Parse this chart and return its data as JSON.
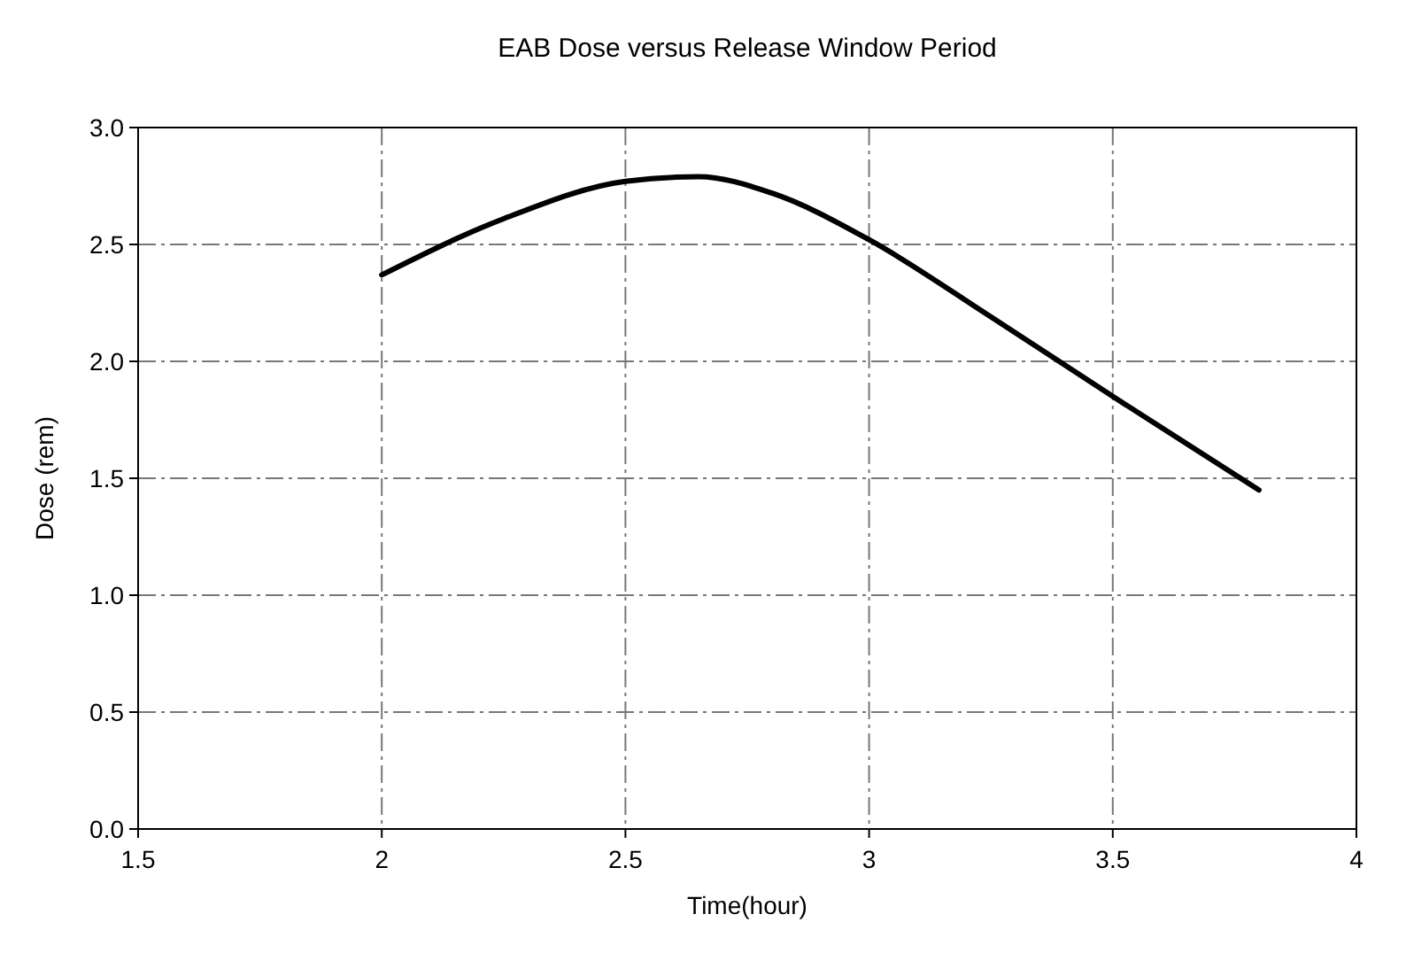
{
  "chart_data": {
    "type": "line",
    "title": "EAB Dose versus Release Window Period",
    "xlabel": "Time(hour)",
    "ylabel": "Dose (rem)",
    "x": [
      2,
      2.25,
      2.5,
      2.65,
      2.8,
      3,
      3.25,
      3.5,
      3.8
    ],
    "series": [
      {
        "color": "#000000",
        "values": [
          2.37,
          2.61,
          2.77,
          2.79,
          2.72,
          2.52,
          2.19,
          1.85,
          1.45
        ]
      }
    ],
    "xlim": [
      1.5,
      4
    ],
    "xticks": [
      1.5,
      2,
      2.5,
      3,
      3.5,
      4
    ],
    "ylim": [
      0,
      3
    ],
    "yticks": [
      {
        "value": 0,
        "label": "0.0"
      },
      {
        "value": 0.5,
        "label": "0.5"
      },
      {
        "value": 1,
        "label": "1.0"
      },
      {
        "value": 1.5,
        "label": "1.5"
      },
      {
        "value": 2,
        "label": "2.0"
      },
      {
        "value": 2.5,
        "label": "2.5"
      },
      {
        "value": 3,
        "label": "3.0"
      }
    ],
    "grid": true,
    "marker": "none",
    "line_style": "solid"
  }
}
